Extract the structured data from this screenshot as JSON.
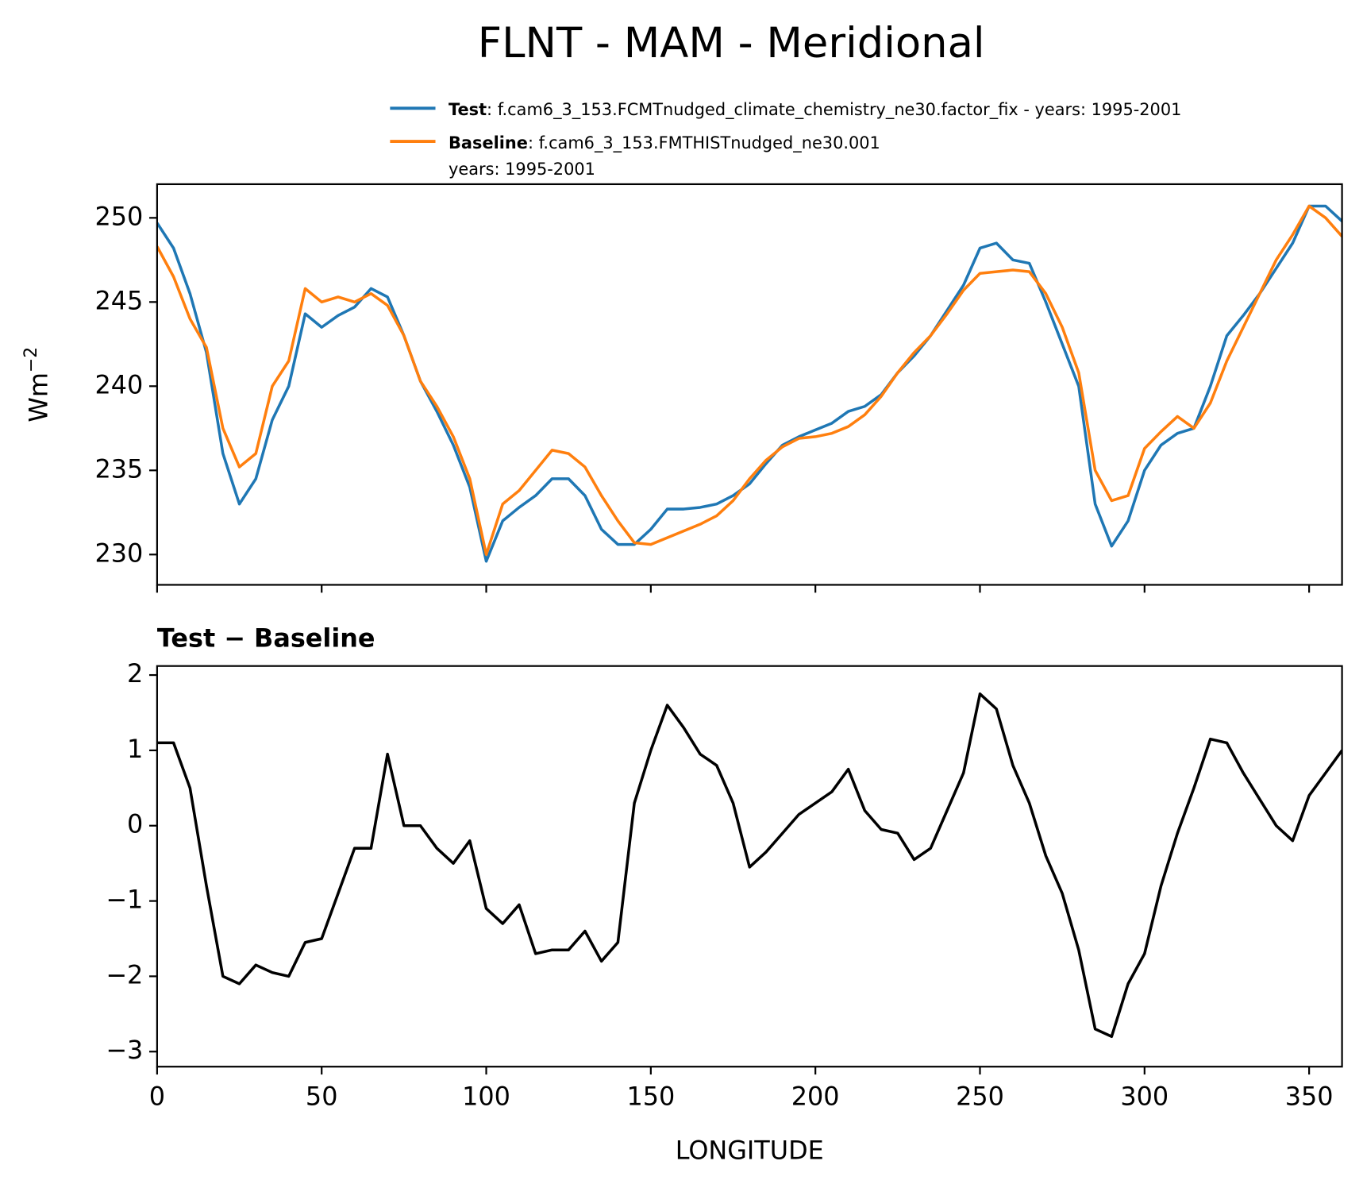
{
  "title": "FLNT - MAM - Meridional",
  "chart_data": [
    {
      "type": "line",
      "ylabel": "Wm",
      "ylabel_sup": "−2",
      "x": [
        0,
        5,
        10,
        15,
        20,
        25,
        30,
        35,
        40,
        45,
        50,
        55,
        60,
        65,
        70,
        75,
        80,
        85,
        90,
        95,
        100,
        105,
        110,
        115,
        120,
        125,
        130,
        135,
        140,
        145,
        150,
        155,
        160,
        165,
        170,
        175,
        180,
        185,
        190,
        195,
        200,
        205,
        210,
        215,
        220,
        225,
        230,
        235,
        240,
        245,
        250,
        255,
        260,
        265,
        270,
        275,
        280,
        285,
        290,
        295,
        300,
        305,
        310,
        315,
        320,
        325,
        330,
        335,
        340,
        345,
        350,
        355,
        360
      ],
      "series": [
        {
          "name": "Test",
          "description": [
            ": f.cam6_3_153.FCMTnudged_climate_chemistry_ne30.factor_fix - years: 1995-2001"
          ],
          "color": "#1f77b4",
          "values": [
            249.7,
            248.2,
            245.5,
            242,
            236,
            233,
            234.5,
            238,
            240,
            244.3,
            243.5,
            244.2,
            244.7,
            245.8,
            245.3,
            243,
            240.3,
            238.5,
            236.5,
            234,
            229.6,
            232,
            232.8,
            233.5,
            234.5,
            234.5,
            233.5,
            231.5,
            230.6,
            230.6,
            231.5,
            232.7,
            232.7,
            232.8,
            233,
            233.5,
            234.2,
            235.4,
            236.5,
            237,
            237.4,
            237.8,
            238.5,
            238.8,
            239.5,
            240.8,
            241.8,
            243,
            244.5,
            246,
            248.2,
            248.5,
            247.5,
            247.3,
            245,
            242.5,
            240,
            233,
            230.5,
            232,
            235,
            236.5,
            237.2,
            237.5,
            240,
            243,
            244.2,
            245.5,
            247,
            248.5,
            250.7,
            250.7,
            249.8
          ]
        },
        {
          "name": "Baseline",
          "description": [
            ": f.cam6_3_153.FMTHISTnudged_ne30.001",
            "years: 1995-2001"
          ],
          "color": "#ff7f0e",
          "values": [
            248.3,
            246.5,
            244,
            242.3,
            237.5,
            235.2,
            236,
            240,
            241.5,
            245.8,
            245,
            245.3,
            245,
            245.5,
            244.8,
            243,
            240.3,
            238.8,
            237,
            234.5,
            230,
            233,
            233.8,
            235,
            236.2,
            236,
            235.2,
            233.5,
            232,
            230.7,
            230.6,
            231,
            231.4,
            231.8,
            232.3,
            233.2,
            234.5,
            235.6,
            236.4,
            236.9,
            237,
            237.2,
            237.6,
            238.3,
            239.4,
            240.8,
            242,
            243,
            244.3,
            245.7,
            246.7,
            246.8,
            246.9,
            246.8,
            245.5,
            243.5,
            240.8,
            235,
            233.2,
            233.5,
            236.3,
            237.3,
            238.2,
            237.5,
            239,
            241.5,
            243.5,
            245.5,
            247.5,
            249,
            250.7,
            250,
            248.9
          ]
        }
      ],
      "xlim": [
        0,
        360
      ],
      "xticks": [
        0,
        50,
        100,
        150,
        200,
        250,
        300,
        350
      ],
      "xticklabels": false,
      "ylim": [
        228.2,
        252
      ],
      "yticks": [
        230,
        235,
        240,
        245,
        250
      ],
      "legend": "upper right"
    },
    {
      "type": "line",
      "title": "Test − Baseline",
      "xlabel": "LONGITUDE",
      "x": [
        0,
        5,
        10,
        15,
        20,
        25,
        30,
        35,
        40,
        45,
        50,
        55,
        60,
        65,
        70,
        75,
        80,
        85,
        90,
        95,
        100,
        105,
        110,
        115,
        120,
        125,
        130,
        135,
        140,
        145,
        150,
        155,
        160,
        165,
        170,
        175,
        180,
        185,
        190,
        195,
        200,
        205,
        210,
        215,
        220,
        225,
        230,
        235,
        240,
        245,
        250,
        255,
        260,
        265,
        270,
        275,
        280,
        285,
        290,
        295,
        300,
        305,
        310,
        315,
        320,
        325,
        330,
        335,
        340,
        345,
        350,
        355,
        360
      ],
      "series": [
        {
          "color": "#000000",
          "values": [
            1.1,
            1.1,
            0.5,
            -0.8,
            -2,
            -2.1,
            -1.85,
            -1.95,
            -2,
            -1.55,
            -1.5,
            -0.9,
            -0.3,
            -0.3,
            0.95,
            0,
            0,
            -0.3,
            -0.5,
            -0.2,
            -1.1,
            -1.3,
            -1.05,
            -1.7,
            -1.65,
            -1.65,
            -1.4,
            -1.8,
            -1.55,
            0.3,
            1.0,
            1.6,
            1.3,
            0.95,
            0.8,
            0.3,
            -0.55,
            -0.35,
            -0.1,
            0.15,
            0.3,
            0.45,
            0.75,
            0.2,
            -0.05,
            -0.1,
            -0.45,
            -0.3,
            0.2,
            0.7,
            1.75,
            1.55,
            0.8,
            0.3,
            -0.4,
            -0.9,
            -1.65,
            -2.7,
            -2.8,
            -2.1,
            -1.7,
            -0.8,
            -0.1,
            0.5,
            1.15,
            1.1,
            0.7,
            0.35,
            0,
            -0.2,
            0.4,
            0.7,
            1.0
          ]
        }
      ],
      "xlim": [
        0,
        360
      ],
      "xticks": [
        0,
        50,
        100,
        150,
        200,
        250,
        300,
        350
      ],
      "xticklabels": true,
      "ylim": [
        -3.2,
        2.12
      ],
      "yticks": [
        {
          "value": -3,
          "label": "−3"
        },
        {
          "value": -2,
          "label": "−2"
        },
        {
          "value": -1,
          "label": "−1"
        },
        0,
        1,
        2
      ]
    }
  ]
}
